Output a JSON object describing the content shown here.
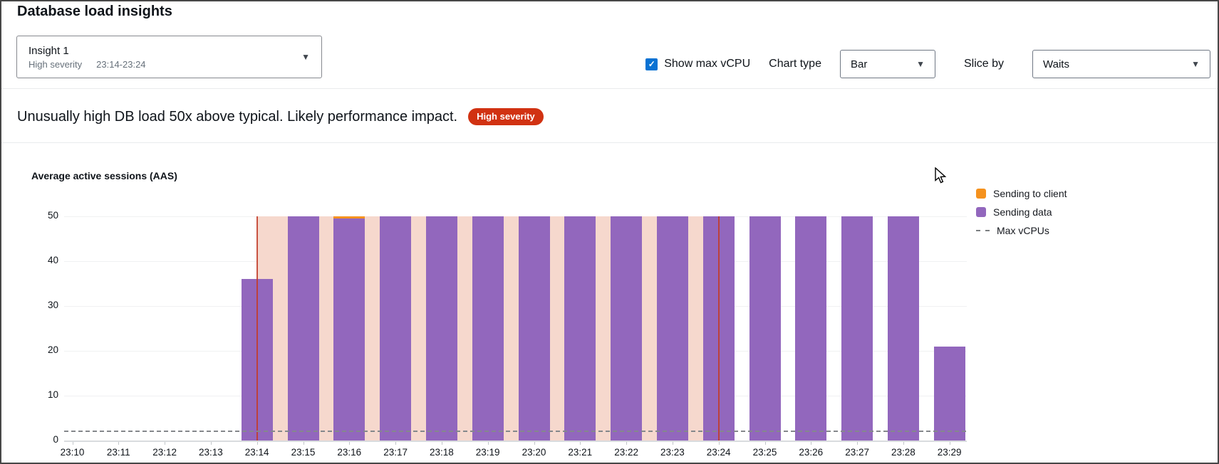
{
  "header": {
    "title": "Database load insights"
  },
  "insight_select": {
    "label": "Insight 1",
    "severity": "High severity",
    "time_range": "23:14-23:24"
  },
  "controls": {
    "show_max_vcpu_label": "Show max vCPU",
    "show_max_vcpu_checked": true,
    "checkbox_color": "#0972d3",
    "chart_type_label": "Chart type",
    "chart_type_value": "Bar",
    "slice_by_label": "Slice by",
    "slice_by_value": "Waits"
  },
  "alert": {
    "text": "Unusually high DB load 50x above typical. Likely performance impact.",
    "badge": "High severity",
    "badge_color": "#d13212"
  },
  "chart_data": {
    "type": "bar",
    "stacked": true,
    "title": "Average active sessions (AAS)",
    "x": [
      "23:10",
      "23:11",
      "23:12",
      "23:13",
      "23:14",
      "23:15",
      "23:16",
      "23:17",
      "23:18",
      "23:19",
      "23:20",
      "23:21",
      "23:22",
      "23:23",
      "23:24",
      "23:25",
      "23:26",
      "23:27",
      "23:28",
      "23:29"
    ],
    "series": [
      {
        "name": "Sending to client",
        "color": "#f5921e",
        "values": [
          0,
          0,
          0,
          0,
          0,
          0,
          0.5,
          0,
          0,
          0,
          0,
          0,
          0,
          0,
          0,
          0,
          0,
          0,
          0,
          0
        ]
      },
      {
        "name": "Sending data",
        "color": "#9267bd",
        "values": [
          0,
          0,
          0,
          0,
          36,
          50,
          49.5,
          50,
          50,
          50,
          50,
          50,
          50,
          50,
          50,
          50,
          50,
          50,
          50,
          21
        ]
      }
    ],
    "max_vcpus_value": 2,
    "ylim": [
      0,
      50
    ],
    "yticks": [
      0,
      10,
      20,
      30,
      40,
      50
    ],
    "grid": true,
    "legend_position": "right",
    "legend": [
      {
        "label": "Sending to client",
        "swatch": "square",
        "color": "#f5921e"
      },
      {
        "label": "Sending data",
        "swatch": "square",
        "color": "#9267bd"
      },
      {
        "label": "Max vCPUs",
        "swatch": "dashed-line",
        "color": "#7b7e81"
      }
    ],
    "highlight": {
      "from": "23:14",
      "to": "23:24",
      "region_color": "#f6d8cd",
      "marker_color": "#c13c2a",
      "marker_lines_at": [
        "23:14",
        "23:24"
      ]
    }
  }
}
